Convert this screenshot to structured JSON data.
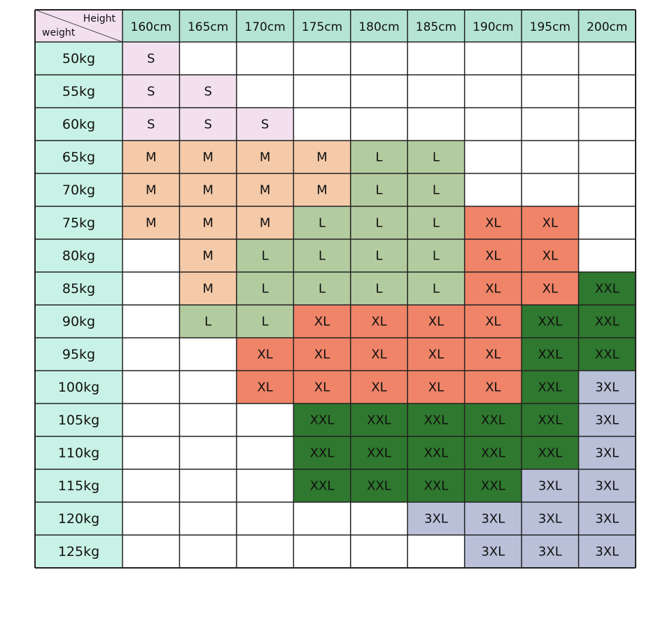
{
  "table": {
    "corner": {
      "top": "Height",
      "bottom": "weight"
    },
    "columns": [
      "160cm",
      "165cm",
      "170cm",
      "175cm",
      "180cm",
      "185cm",
      "190cm",
      "195cm",
      "200cm"
    ],
    "rows": [
      {
        "label": "50kg",
        "cells": [
          "S",
          null,
          null,
          null,
          null,
          null,
          null,
          null,
          null
        ]
      },
      {
        "label": "55kg",
        "cells": [
          "S",
          "S",
          null,
          null,
          null,
          null,
          null,
          null,
          null
        ]
      },
      {
        "label": "60kg",
        "cells": [
          "S",
          "S",
          "S",
          null,
          null,
          null,
          null,
          null,
          null
        ]
      },
      {
        "label": "65kg",
        "cells": [
          "M",
          "M",
          "M",
          "M",
          "L",
          "L",
          null,
          null,
          null
        ]
      },
      {
        "label": "70kg",
        "cells": [
          "M",
          "M",
          "M",
          "M",
          "L",
          "L",
          null,
          null,
          null
        ]
      },
      {
        "label": "75kg",
        "cells": [
          "M",
          "M",
          "M",
          "L",
          "L",
          "L",
          "XL",
          "XL",
          null
        ]
      },
      {
        "label": "80kg",
        "cells": [
          null,
          "M",
          "L",
          "L",
          "L",
          "L",
          "XL",
          "XL",
          null
        ]
      },
      {
        "label": "85kg",
        "cells": [
          null,
          "M",
          "L",
          "L",
          "L",
          "L",
          "XL",
          "XL",
          "XXL"
        ]
      },
      {
        "label": "90kg",
        "cells": [
          null,
          "L",
          "L",
          "XL",
          "XL",
          "XL",
          "XL",
          "XXL",
          "XXL"
        ]
      },
      {
        "label": "95kg",
        "cells": [
          null,
          null,
          "XL",
          "XL",
          "XL",
          "XL",
          "XL",
          "XXL",
          "XXL"
        ]
      },
      {
        "label": "100kg",
        "cells": [
          null,
          null,
          "XL",
          "XL",
          "XL",
          "XL",
          "XL",
          "XXL",
          "3XL"
        ]
      },
      {
        "label": "105kg",
        "cells": [
          null,
          null,
          null,
          "XXL",
          "XXL",
          "XXL",
          "XXL",
          "XXL",
          "3XL"
        ]
      },
      {
        "label": "110kg",
        "cells": [
          null,
          null,
          null,
          "XXL",
          "XXL",
          "XXL",
          "XXL",
          "XXL",
          "3XL"
        ]
      },
      {
        "label": "115kg",
        "cells": [
          null,
          null,
          null,
          "XXL",
          "XXL",
          "XXL",
          "XXL",
          "3XL",
          "3XL"
        ]
      },
      {
        "label": "120kg",
        "cells": [
          null,
          null,
          null,
          null,
          null,
          "3XL",
          "3XL",
          "3XL",
          "3XL"
        ]
      },
      {
        "label": "125kg",
        "cells": [
          null,
          null,
          null,
          null,
          null,
          null,
          "3XL",
          "3XL",
          "3XL"
        ]
      }
    ],
    "colors": {
      "S": "#f3e0ef",
      "M": "#f5caa9",
      "L": "#b3cc9f",
      "XL": "#ef8468",
      "XXL": "#2f782f",
      "3XL": "#b9c0d8"
    }
  }
}
